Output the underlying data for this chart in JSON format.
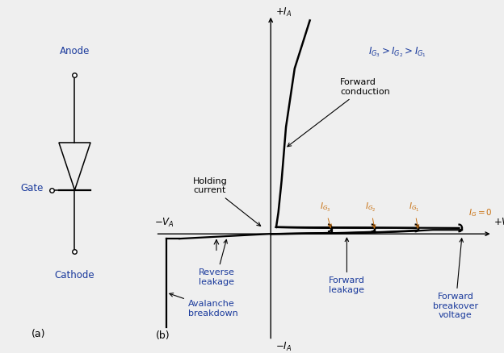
{
  "background_color": "#efefef",
  "fig_width": 6.24,
  "fig_height": 4.38,
  "dpi": 100,
  "line_color": "#000000",
  "text_color_blue": "#1a3a9c",
  "text_color_black": "#000000",
  "ig_label_color": "#c87010",
  "label_a": "(a)",
  "label_b": "(b)",
  "anode_label": "Anode",
  "gate_label": "Gate",
  "cathode_label": "Cathode",
  "forward_conduction_label": "Forward\nconduction",
  "ig_relation": "$I_{G_3} > I_{G_2} > I_{G_1}$",
  "holding_current_label": "Holding\ncurrent",
  "reverse_leakage_label": "Reverse\nleakage",
  "avalanche_breakdown_label": "Avalanche\nbreakdown",
  "forward_leakage_label": "Forward\nleakage",
  "forward_breakover_label": "Forward\nbreakover\nvoltage",
  "plus_ia": "$+I_A$",
  "minus_ia": "$-I_A$",
  "minus_va": "$-V_A$",
  "plus_va": "$+V_A$",
  "ig0_label": "$I_G = 0$",
  "ig1_label": "$I_{G_1}$",
  "ig2_label": "$I_{G_2}$",
  "ig3_label": "$I_{G_3}$"
}
